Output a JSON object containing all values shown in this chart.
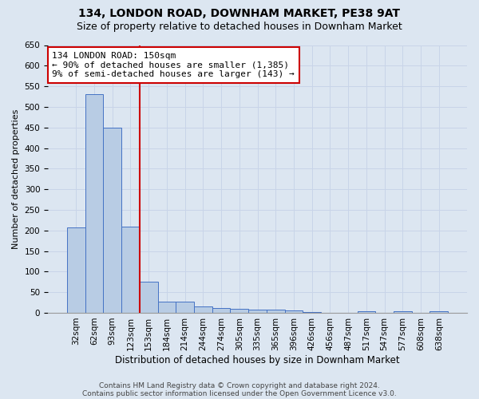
{
  "title1": "134, LONDON ROAD, DOWNHAM MARKET, PE38 9AT",
  "title2": "Size of property relative to detached houses in Downham Market",
  "xlabel": "Distribution of detached houses by size in Downham Market",
  "ylabel": "Number of detached properties",
  "footnote1": "Contains HM Land Registry data © Crown copyright and database right 2024.",
  "footnote2": "Contains public sector information licensed under the Open Government Licence v3.0.",
  "categories": [
    "32sqm",
    "62sqm",
    "93sqm",
    "123sqm",
    "153sqm",
    "184sqm",
    "214sqm",
    "244sqm",
    "274sqm",
    "305sqm",
    "335sqm",
    "365sqm",
    "396sqm",
    "426sqm",
    "456sqm",
    "487sqm",
    "517sqm",
    "547sqm",
    "577sqm",
    "608sqm",
    "638sqm"
  ],
  "values": [
    208,
    530,
    450,
    210,
    75,
    27,
    27,
    15,
    12,
    10,
    7,
    7,
    5,
    1,
    0,
    0,
    4,
    0,
    4,
    0,
    4
  ],
  "bar_color": "#b8cce4",
  "bar_edge_color": "#4472c4",
  "grid_color": "#c8d4e8",
  "background_color": "#dce6f1",
  "plot_bg_color": "#dce6f1",
  "vline_x_index": 4,
  "vline_color": "#cc0000",
  "annotation_line1": "134 LONDON ROAD: 150sqm",
  "annotation_line2": "← 90% of detached houses are smaller (1,385)",
  "annotation_line3": "9% of semi-detached houses are larger (143) →",
  "annotation_box_color": "#ffffff",
  "annotation_box_edge_color": "#cc0000",
  "ylim": [
    0,
    650
  ],
  "yticks": [
    0,
    50,
    100,
    150,
    200,
    250,
    300,
    350,
    400,
    450,
    500,
    550,
    600,
    650
  ],
  "title1_fontsize": 10,
  "title2_fontsize": 9,
  "xlabel_fontsize": 8.5,
  "ylabel_fontsize": 8,
  "tick_fontsize": 7.5,
  "annotation_fontsize": 8,
  "footnote_fontsize": 6.5
}
